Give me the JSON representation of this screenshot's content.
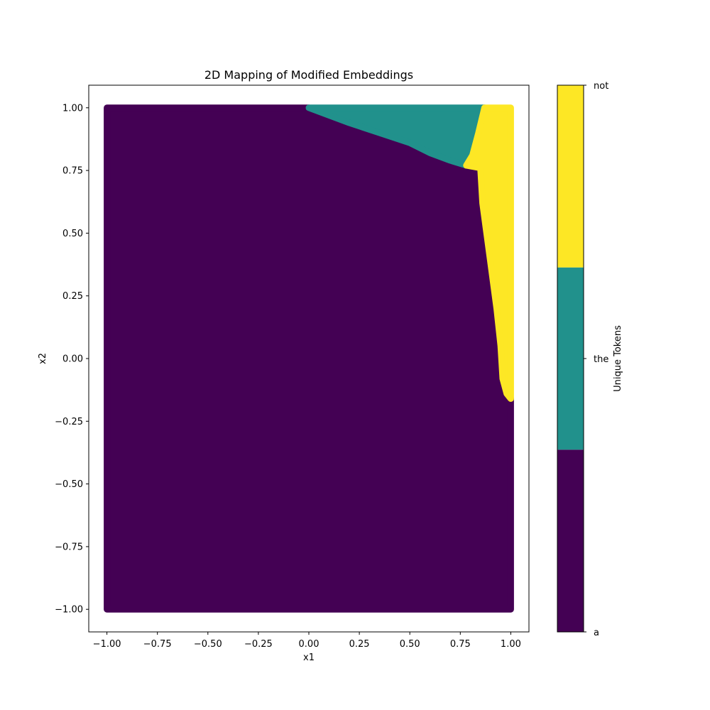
{
  "chart_data": {
    "type": "scatter",
    "title": "2D Mapping of Modified Embeddings",
    "xlabel": "x1",
    "ylabel": "x2",
    "xlim": [
      -1.09,
      1.09
    ],
    "ylim": [
      -1.09,
      1.09
    ],
    "xticks": [
      "-1.00",
      "-0.75",
      "-0.50",
      "-0.25",
      "0.00",
      "0.25",
      "0.50",
      "0.75",
      "1.00"
    ],
    "yticks": [
      "-1.00",
      "-0.75",
      "-0.50",
      "-0.25",
      "0.00",
      "0.25",
      "0.50",
      "0.75",
      "1.00"
    ],
    "grid": false,
    "point_grid": {
      "x_range": [
        -1.0,
        1.0
      ],
      "y_range": [
        -1.0,
        1.0
      ],
      "step": 0.02
    },
    "regions": [
      {
        "name": "a",
        "color": "#440154",
        "polygon": [
          [
            -1.0,
            -1.0
          ],
          [
            1.0,
            -1.0
          ],
          [
            1.0,
            -0.16
          ],
          [
            0.98,
            -0.14
          ],
          [
            0.96,
            -0.08
          ],
          [
            0.95,
            0.05
          ],
          [
            0.93,
            0.2
          ],
          [
            0.9,
            0.38
          ],
          [
            0.88,
            0.5
          ],
          [
            0.86,
            0.62
          ],
          [
            0.85,
            0.76
          ],
          [
            0.78,
            0.77
          ],
          [
            0.7,
            0.79
          ],
          [
            0.6,
            0.82
          ],
          [
            0.5,
            0.86
          ],
          [
            0.35,
            0.9
          ],
          [
            0.2,
            0.94
          ],
          [
            0.1,
            0.97
          ],
          [
            0.0,
            1.0
          ],
          [
            -1.0,
            1.0
          ]
        ]
      },
      {
        "name": "the",
        "color": "#21918c",
        "polygon": [
          [
            0.0,
            1.0
          ],
          [
            0.1,
            0.97
          ],
          [
            0.2,
            0.94
          ],
          [
            0.35,
            0.9
          ],
          [
            0.5,
            0.86
          ],
          [
            0.6,
            0.82
          ],
          [
            0.7,
            0.79
          ],
          [
            0.78,
            0.77
          ],
          [
            0.81,
            0.81
          ],
          [
            0.84,
            0.9
          ],
          [
            0.87,
            1.0
          ]
        ]
      },
      {
        "name": "not",
        "color": "#fde725",
        "polygon": [
          [
            0.87,
            1.0
          ],
          [
            0.84,
            0.9
          ],
          [
            0.81,
            0.81
          ],
          [
            0.78,
            0.77
          ],
          [
            0.85,
            0.76
          ],
          [
            0.86,
            0.62
          ],
          [
            0.88,
            0.5
          ],
          [
            0.9,
            0.38
          ],
          [
            0.93,
            0.2
          ],
          [
            0.95,
            0.05
          ],
          [
            0.96,
            -0.08
          ],
          [
            0.98,
            -0.14
          ],
          [
            1.0,
            -0.16
          ],
          [
            1.0,
            1.0
          ]
        ]
      }
    ],
    "colorbar": {
      "label": "Unique Tokens",
      "ticks": [
        "a",
        "the",
        "not"
      ],
      "colors": [
        "#440154",
        "#21918c",
        "#fde725"
      ]
    }
  }
}
